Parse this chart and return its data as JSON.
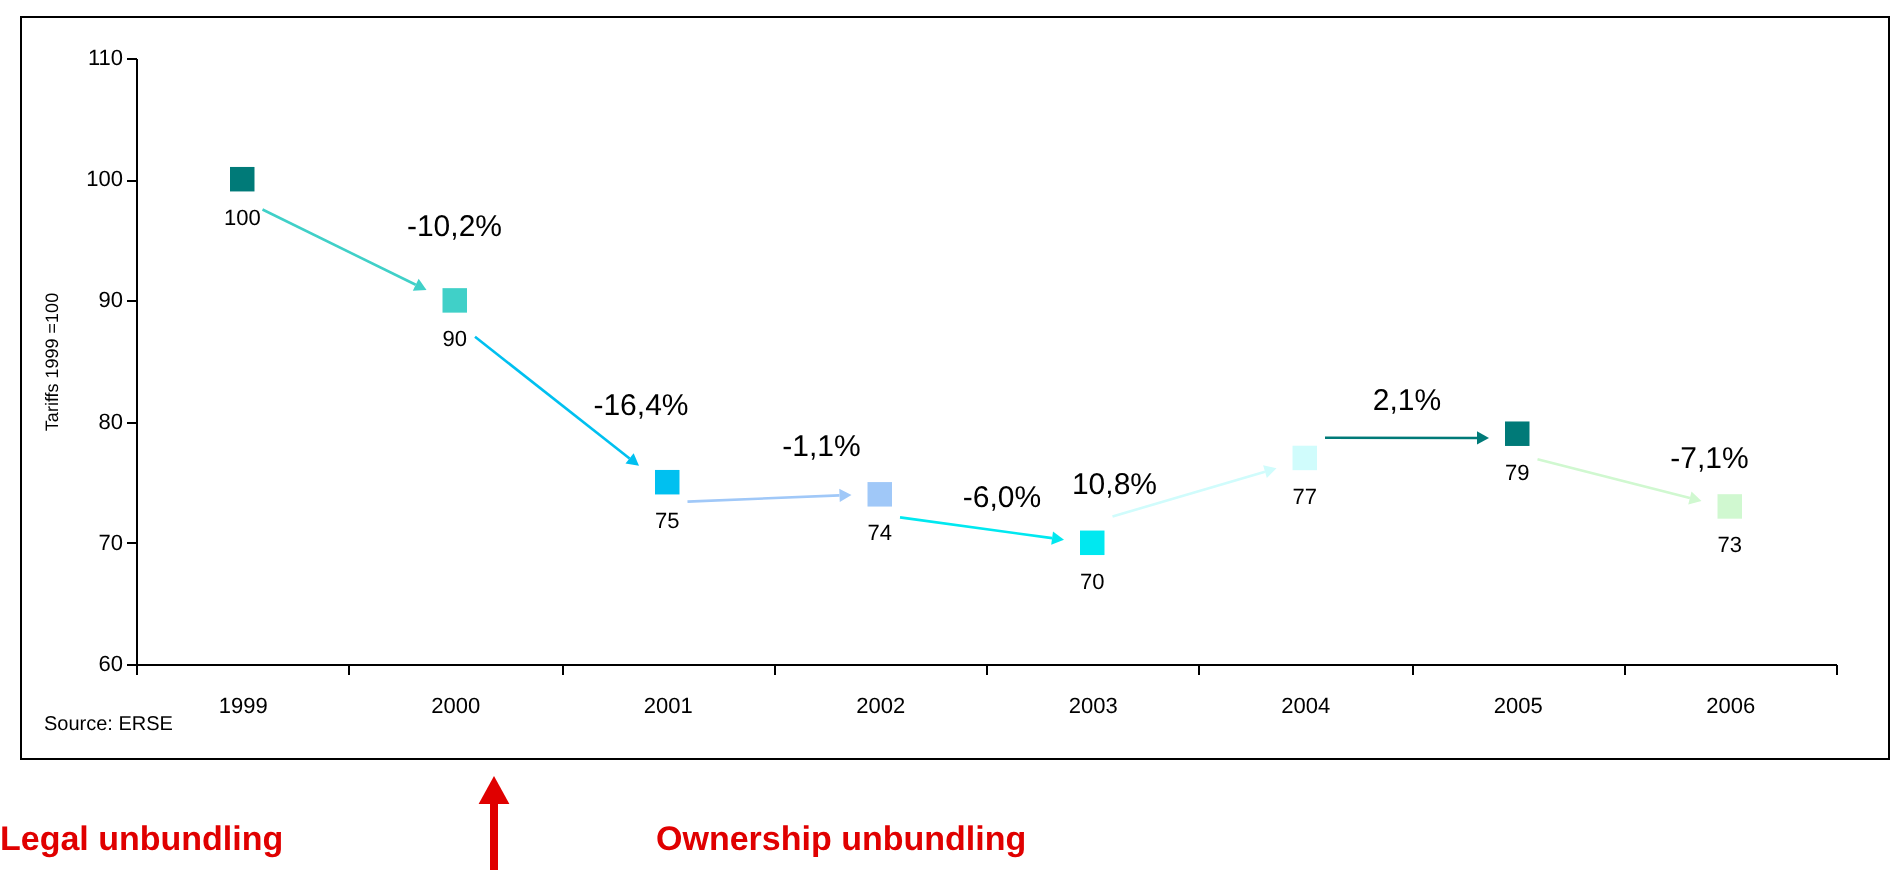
{
  "chart_data": {
    "type": "scatter",
    "marker": "square",
    "data_labels": true,
    "ylabel": "Tariffs 1999 =100",
    "categories": [
      "1999",
      "2000",
      "2001",
      "2002",
      "2003",
      "2004",
      "2005",
      "2006"
    ],
    "values": [
      100,
      90,
      75,
      74,
      70,
      77,
      79,
      73
    ],
    "colors": [
      "#007a78",
      "#40d0c8",
      "#00c0f0",
      "#a0c8f8",
      "#00e8f0",
      "#d0fcfc",
      "#007a78",
      "#d0f8d0"
    ],
    "ylim": [
      60,
      110
    ],
    "yticks": [
      60,
      70,
      80,
      90,
      100,
      110
    ],
    "grid": false,
    "annotations": [
      "-10,2%",
      "-16,4%",
      "-1,1%",
      "-6,0%",
      "10,8%",
      "2,1%",
      "-7,1%",
      "Source: ERSE",
      "Legal unbundling",
      "Ownership unbundling"
    ]
  }
}
